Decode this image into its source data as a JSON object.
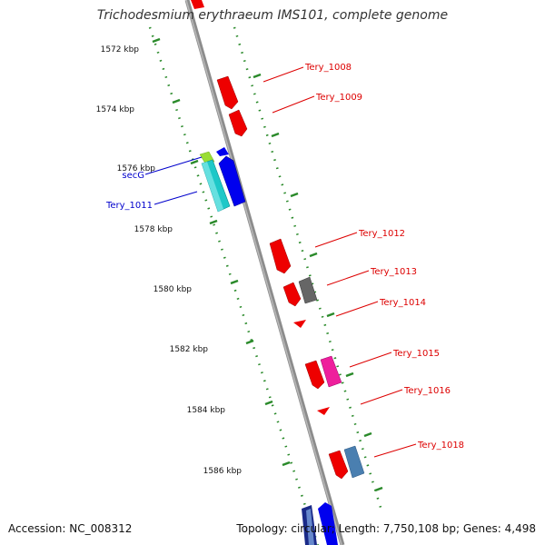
{
  "title": "Trichodesmium erythraeum IMS101, complete genome",
  "footer": {
    "accession": "Accession: NC_008312",
    "summary": "Topology: circular; Length: 7,750,108 bp; Genes: 4,498"
  },
  "colors": {
    "backbone": "#8c8c8c",
    "tick": "#2a8a2a",
    "forward_label": "#0000cc",
    "reverse_label": "#dd0000"
  },
  "position_ticks": [
    {
      "label": "1572 kbp"
    },
    {
      "label": "1574 kbp"
    },
    {
      "label": "1576 kbp"
    },
    {
      "label": "1578 kbp"
    },
    {
      "label": "1580 kbp"
    },
    {
      "label": "1582 kbp"
    },
    {
      "label": "1584 kbp"
    },
    {
      "label": "1586 kbp"
    }
  ],
  "gene_labels": [
    {
      "text": "Tery_1008",
      "strand": "reverse"
    },
    {
      "text": "Tery_1009",
      "strand": "reverse"
    },
    {
      "text": "secG",
      "strand": "forward"
    },
    {
      "text": "Tery_1011",
      "strand": "forward"
    },
    {
      "text": "Tery_1012",
      "strand": "reverse"
    },
    {
      "text": "Tery_1013",
      "strand": "reverse"
    },
    {
      "text": "Tery_1014",
      "strand": "reverse"
    },
    {
      "text": "Tery_1015",
      "strand": "reverse"
    },
    {
      "text": "Tery_1016",
      "strand": "reverse"
    },
    {
      "text": "Tery_1018",
      "strand": "reverse"
    }
  ]
}
